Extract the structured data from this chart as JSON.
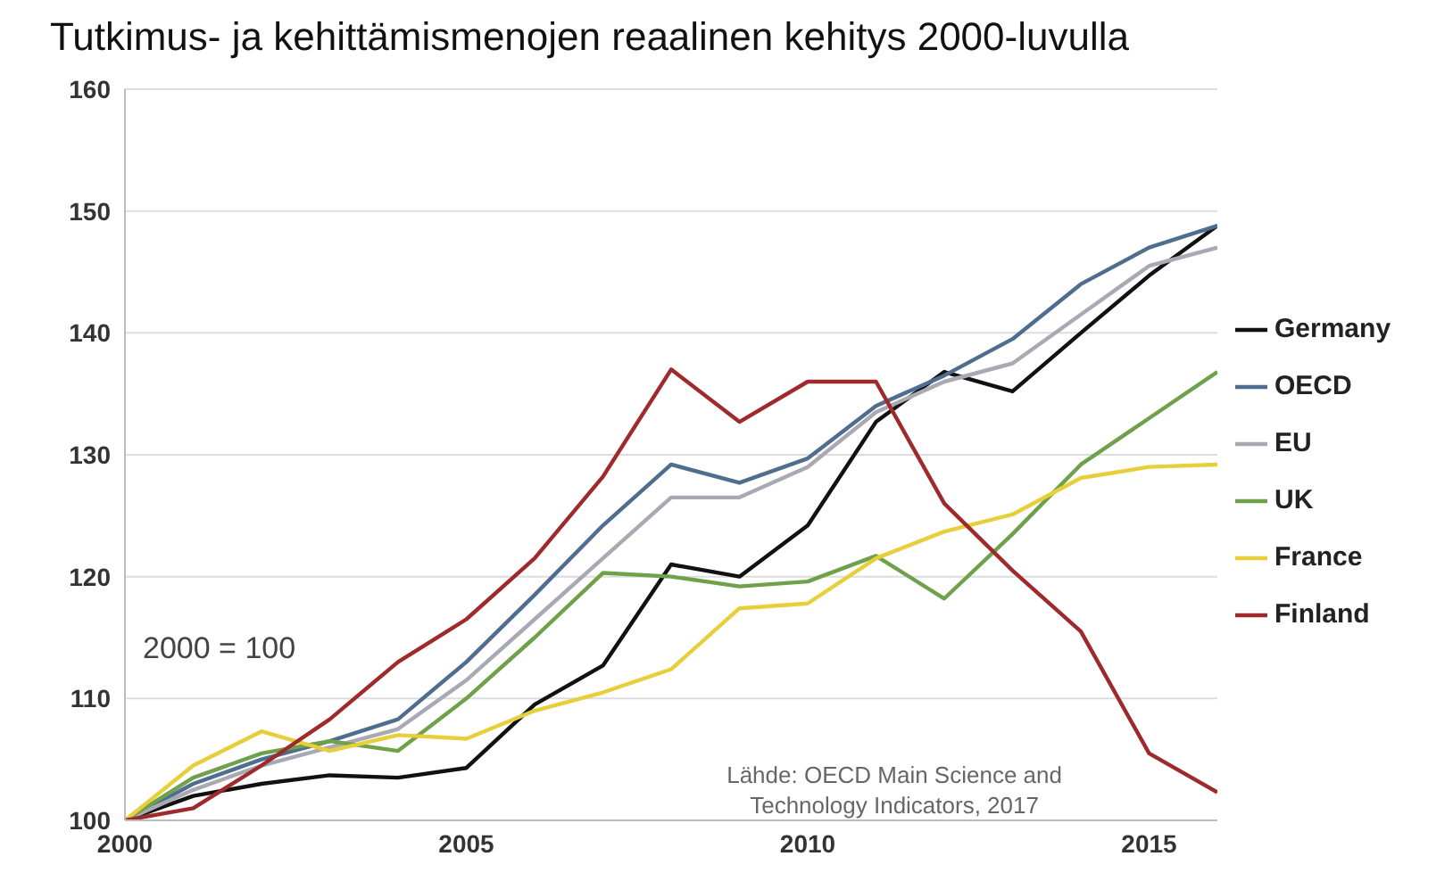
{
  "chart_data": {
    "type": "line",
    "title": "Tutkimus- ja kehittämismenojen reaalinen kehitys 2000-luvulla",
    "x": [
      2000,
      2001,
      2002,
      2003,
      2004,
      2005,
      2006,
      2007,
      2008,
      2009,
      2010,
      2011,
      2012,
      2013,
      2014,
      2015,
      2016
    ],
    "xlim": [
      2000,
      2016
    ],
    "xticks": [
      2000,
      2005,
      2010,
      2015
    ],
    "ylim": [
      100,
      160
    ],
    "yticks": [
      100,
      110,
      120,
      130,
      140,
      150,
      160
    ],
    "grid": "y",
    "legend": "right",
    "marker": "none",
    "line_style": "solid",
    "annotations": [
      "2000 = 100",
      "Lähde: OECD Main Science and Technology Indicators, 2017"
    ],
    "series": [
      {
        "name": "Germany",
        "color": "#111111",
        "values": [
          100,
          102,
          103,
          103.7,
          103.5,
          104.3,
          109.5,
          112.7,
          121,
          120,
          124.2,
          132.7,
          136.8,
          135.2,
          140,
          144.7,
          148.8
        ]
      },
      {
        "name": "OECD",
        "color": "#4f6d8f",
        "values": [
          100,
          103,
          105,
          106.5,
          108.3,
          113,
          118.5,
          124.2,
          129.2,
          127.7,
          129.7,
          134,
          136.5,
          139.5,
          144,
          147,
          148.8
        ]
      },
      {
        "name": "EU",
        "color": "#a9a9b4",
        "values": [
          100,
          102.5,
          104.5,
          106,
          107.5,
          111.5,
          116.5,
          121.5,
          126.5,
          126.5,
          129,
          133.5,
          136,
          137.5,
          141.5,
          145.5,
          147
        ]
      },
      {
        "name": "UK",
        "color": "#6fa04a",
        "values": [
          100,
          103.5,
          105.5,
          106.5,
          105.7,
          110,
          115,
          120.3,
          120,
          119.2,
          119.6,
          121.7,
          118.2,
          123.5,
          129.2,
          133,
          136.8
        ]
      },
      {
        "name": "France",
        "color": "#e6cf3a",
        "values": [
          100,
          104.5,
          107.3,
          105.7,
          107,
          106.7,
          109,
          110.5,
          112.4,
          117.4,
          117.8,
          121.5,
          123.7,
          125.1,
          128.1,
          129,
          129.2
        ]
      },
      {
        "name": "Finland",
        "color": "#9e2a2b",
        "values": [
          100,
          101,
          104.5,
          108.3,
          113,
          116.5,
          121.5,
          128.2,
          137,
          132.7,
          136,
          136,
          126,
          120.5,
          115.5,
          105.5,
          102.3
        ]
      }
    ]
  }
}
